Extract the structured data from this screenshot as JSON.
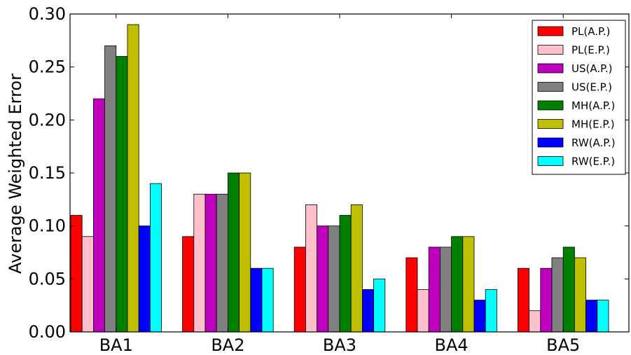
{
  "chart_data": {
    "type": "bar",
    "title": "",
    "xlabel": "",
    "ylabel": "Average Weighted Error",
    "ylim": [
      0,
      0.3
    ],
    "yticks": [
      "0.00",
      "0.05",
      "0.10",
      "0.15",
      "0.20",
      "0.25",
      "0.30"
    ],
    "categories": [
      "BA1",
      "BA2",
      "BA3",
      "BA4",
      "BA5"
    ],
    "legend_position": "top-right",
    "grid": false,
    "series": [
      {
        "name": "PL(A.P.)",
        "color": "#ff0000",
        "values": [
          0.11,
          0.09,
          0.08,
          0.07,
          0.06
        ]
      },
      {
        "name": "PL(E.P.)",
        "color": "#ffc0cb",
        "values": [
          0.09,
          0.13,
          0.12,
          0.04,
          0.02
        ]
      },
      {
        "name": "US(A.P.)",
        "color": "#bf00bf",
        "values": [
          0.22,
          0.13,
          0.1,
          0.08,
          0.06
        ]
      },
      {
        "name": "US(E.P.)",
        "color": "#808080",
        "values": [
          0.27,
          0.13,
          0.1,
          0.08,
          0.07
        ]
      },
      {
        "name": "MH(A.P.)",
        "color": "#008000",
        "values": [
          0.26,
          0.15,
          0.11,
          0.09,
          0.08
        ]
      },
      {
        "name": "MH(E.P.)",
        "color": "#bfbf00",
        "values": [
          0.29,
          0.15,
          0.12,
          0.09,
          0.07
        ]
      },
      {
        "name": "RW(A.P.)",
        "color": "#0000ff",
        "values": [
          0.1,
          0.06,
          0.04,
          0.03,
          0.03
        ]
      },
      {
        "name": "RW(E.P.)",
        "color": "#00ffff",
        "values": [
          0.14,
          0.06,
          0.05,
          0.04,
          0.03
        ]
      }
    ]
  }
}
